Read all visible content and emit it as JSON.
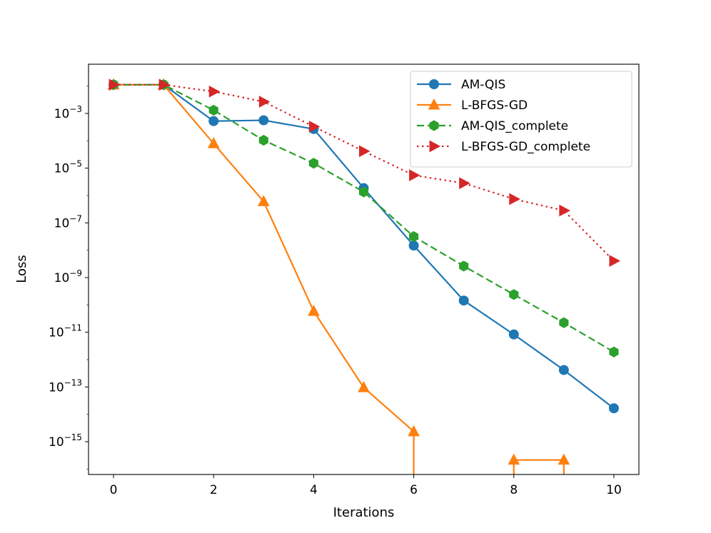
{
  "chart_data": {
    "type": "line",
    "title": "",
    "xlabel": "Iterations",
    "ylabel": "Loss",
    "yscale": "log",
    "xlim": [
      -0.5,
      10.5
    ],
    "ylim_log10": [
      -16.2,
      -1.2
    ],
    "x_ticks": [
      0,
      2,
      4,
      6,
      8,
      10
    ],
    "y_ticks": [
      {
        "exp": -3,
        "base": "10",
        "sup": "−3"
      },
      {
        "exp": -5,
        "base": "10",
        "sup": "−5"
      },
      {
        "exp": -7,
        "base": "10",
        "sup": "−7"
      },
      {
        "exp": -9,
        "base": "10",
        "sup": "−9"
      },
      {
        "exp": -11,
        "base": "10",
        "sup": "−11"
      },
      {
        "exp": -13,
        "base": "10",
        "sup": "−13"
      },
      {
        "exp": -15,
        "base": "10",
        "sup": "−15"
      }
    ],
    "legend_position": "top-right",
    "grid": false,
    "series": [
      {
        "name": "AM-QIS",
        "color": "#1f77b4",
        "linestyle": "solid",
        "marker": "circle",
        "x": [
          0,
          1,
          2,
          3,
          4,
          5,
          6,
          7,
          8,
          9,
          10
        ],
        "log10_y": [
          -1.95,
          -1.95,
          -3.28,
          -3.25,
          -3.57,
          -5.73,
          -7.83,
          -9.84,
          -11.08,
          -12.38,
          -13.78
        ]
      },
      {
        "name": "L-BFGS-GD",
        "color": "#ff7f0e",
        "linestyle": "solid",
        "marker": "triangle-up",
        "x": [
          0,
          1,
          2,
          3,
          4,
          5,
          6,
          7,
          8,
          9,
          10
        ],
        "log10_y": [
          -1.95,
          -1.95,
          -4.1,
          -6.22,
          -10.23,
          -13.02,
          -14.63,
          null,
          -15.67,
          -15.67,
          null
        ],
        "drop_to_axis_after": [
          6,
          9
        ],
        "rise_from_axis_before": [
          8
        ]
      },
      {
        "name": "AM-QIS_complete",
        "color": "#2ca02c",
        "linestyle": "dashed",
        "marker": "hexagon",
        "x": [
          0,
          1,
          2,
          3,
          4,
          5,
          6,
          7,
          8,
          9,
          10
        ],
        "log10_y": [
          -1.95,
          -1.95,
          -2.88,
          -3.98,
          -4.82,
          -5.87,
          -7.5,
          -8.58,
          -9.62,
          -10.65,
          -11.72
        ]
      },
      {
        "name": "L-BFGS-GD_complete",
        "color": "#d62728",
        "linestyle": "dotted",
        "marker": "triangle-right",
        "x": [
          0,
          1,
          2,
          3,
          4,
          5,
          6,
          7,
          8,
          9,
          10
        ],
        "log10_y": [
          -1.95,
          -1.95,
          -2.2,
          -2.57,
          -3.48,
          -4.38,
          -5.26,
          -5.55,
          -6.13,
          -6.55,
          -8.39
        ]
      }
    ]
  }
}
